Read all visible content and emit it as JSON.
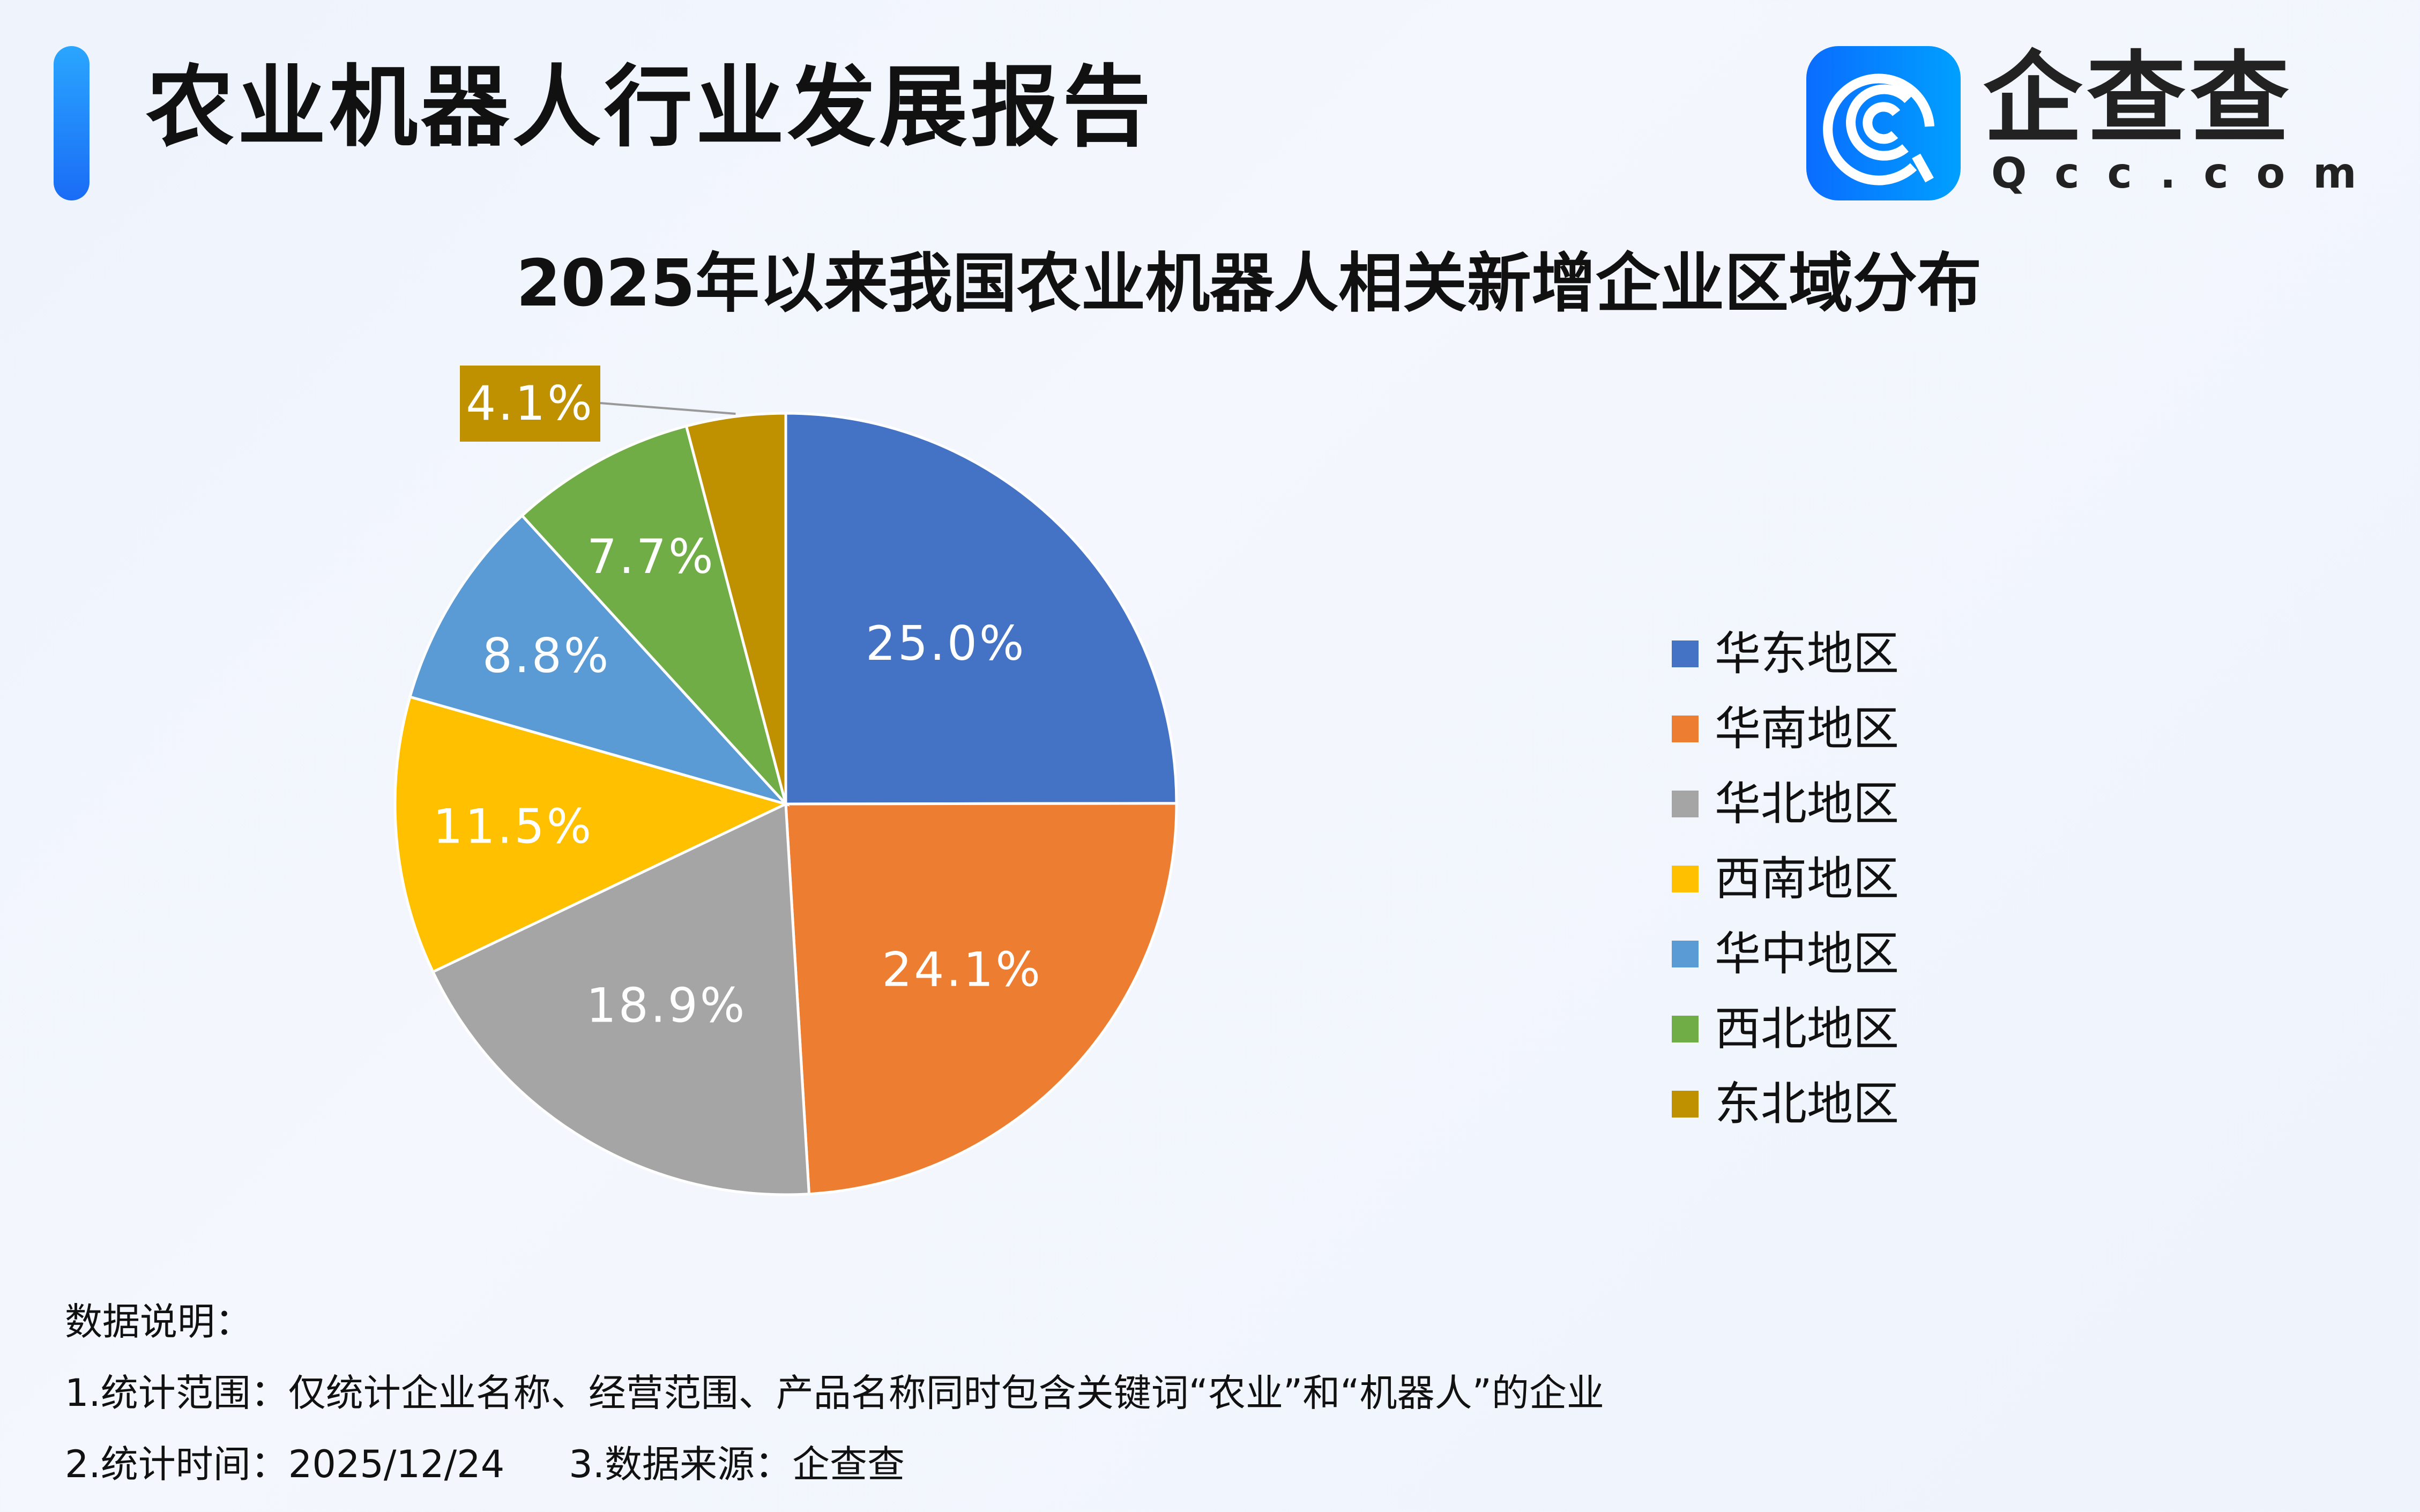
{
  "header": {
    "title": "农业机器人行业发展报告"
  },
  "logo": {
    "name_cn": "企查查",
    "name_en": "Qcc.com"
  },
  "chart_data": {
    "type": "pie",
    "title": "2025年以来我国农业机器人相关新增企业区域分布",
    "start": "top",
    "direction": "clockwise",
    "legend_position": "right",
    "categories": [
      "华东地区",
      "华南地区",
      "华北地区",
      "西南地区",
      "华中地区",
      "西北地区",
      "东北地区"
    ],
    "values": [
      25.0,
      24.1,
      18.9,
      11.5,
      8.8,
      7.7,
      4.1
    ],
    "labels": [
      "25.0%",
      "24.1%",
      "18.9%",
      "11.5%",
      "8.8%",
      "7.7%",
      "4.1%"
    ],
    "colors": [
      "#4472c4",
      "#ed7d31",
      "#a5a5a5",
      "#ffc000",
      "#5b9bd5",
      "#70ad47",
      "#bf9000"
    ]
  },
  "notes": {
    "heading": "数据说明：",
    "line1": "1.统计范围：仅统计企业名称、经营范围、产品名称同时包含关键词“农业”和“机器人”的企业",
    "line2a": "2.统计时间：2025/12/24",
    "line2b": "3.数据来源：企查查"
  }
}
